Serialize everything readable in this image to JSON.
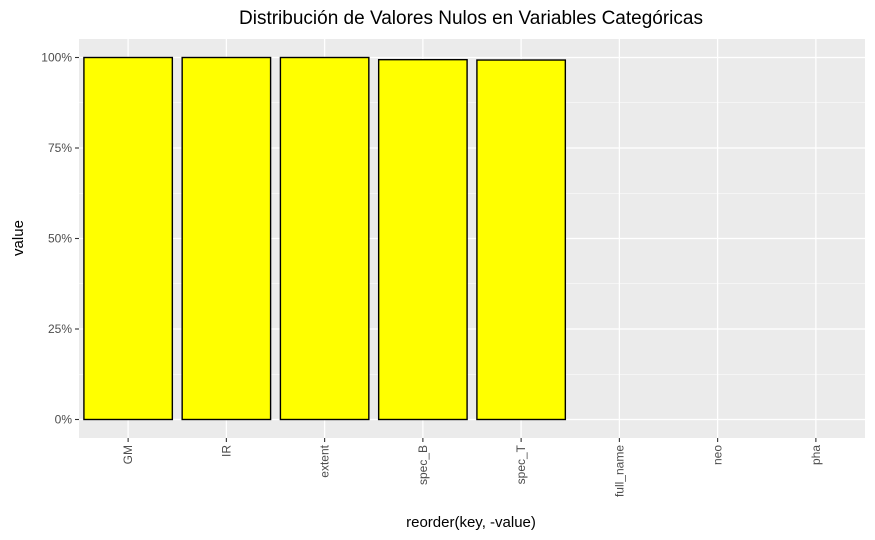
{
  "chart_data": {
    "type": "bar",
    "title": "Distribución de Valores Nulos en Variables Categóricas",
    "xlabel": "reorder(key, -value)",
    "ylabel": "value",
    "categories": [
      "GM",
      "IR",
      "extent",
      "spec_B",
      "spec_T",
      "full_name",
      "neo",
      "pha"
    ],
    "values": [
      1.0,
      1.0,
      1.0,
      0.994,
      0.993,
      0.0,
      0.0,
      0.0
    ],
    "ylim": [
      0,
      1
    ],
    "y_ticks": [
      0,
      0.25,
      0.5,
      0.75,
      1.0
    ],
    "y_tick_labels": [
      "0%",
      "25%",
      "50%",
      "75%",
      "100%"
    ],
    "bar_fill": "#ffff00",
    "bar_outline": "#000000",
    "panel_background": "#ebebeb",
    "grid_color": "#ffffff",
    "grid": true,
    "legend": "none"
  }
}
